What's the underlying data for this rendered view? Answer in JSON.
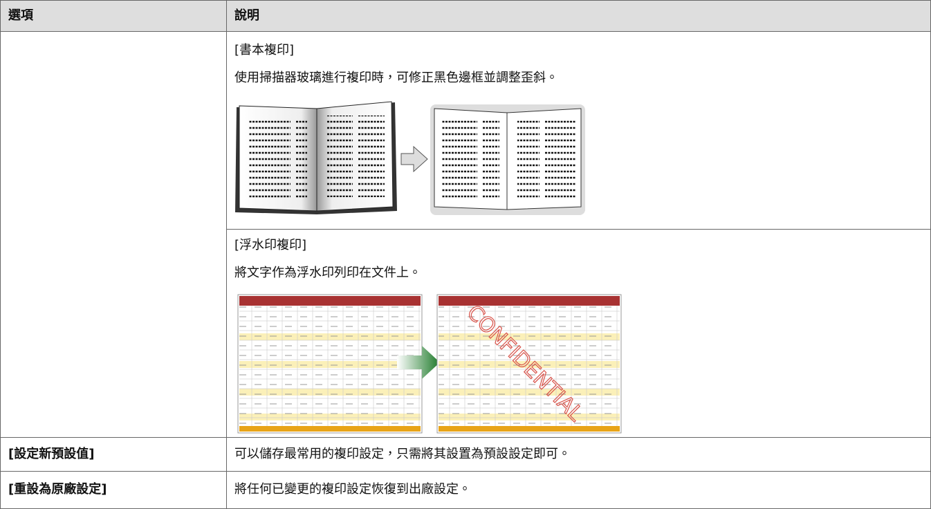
{
  "table": {
    "header": [
      "選項",
      "說明"
    ],
    "rows": [
      {
        "description": {
          "title": "[書本複印]",
          "text": "使用掃描器玻璃進行複印時，可修正黑色邊框並調整歪斜。"
        }
      },
      {
        "description": {
          "title": "[浮水印複印]",
          "text": "將文字作為浮水印列印在文件上。",
          "watermark": "CONFIDENTIAL"
        }
      },
      {
        "option": "[設定新預設值]",
        "description": {
          "text": "可以儲存最常用的複印設定，只需將其設置為預設設定即可。"
        }
      },
      {
        "option": "[重設為原廠設定]",
        "description": {
          "text": "將任何已變更的複印設定恢復到出廠設定。"
        }
      }
    ]
  }
}
